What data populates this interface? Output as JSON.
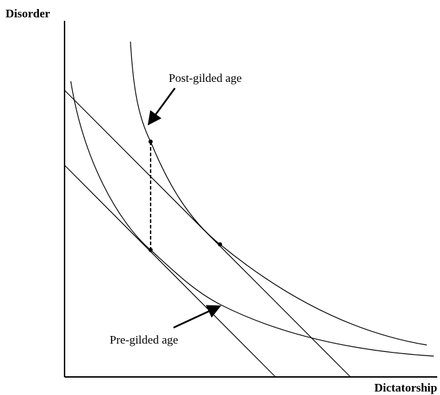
{
  "axes": {
    "y_label": "Disorder",
    "x_label": "Dictatorship"
  },
  "annotations": {
    "post": "Post-gilded age",
    "pre": "Pre-gilded age"
  }
}
